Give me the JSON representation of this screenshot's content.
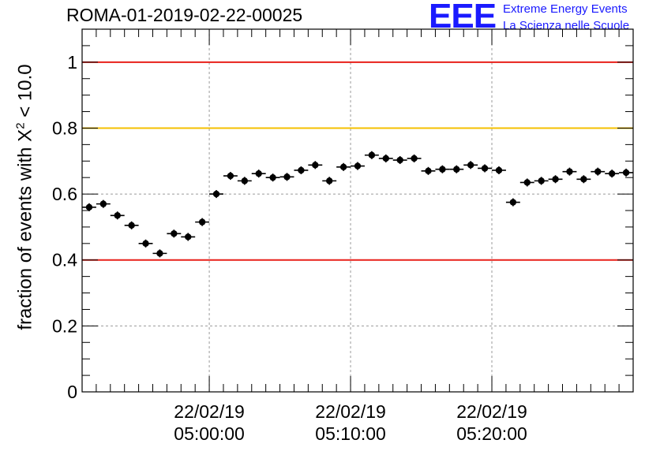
{
  "chart_data": {
    "type": "scatter",
    "title": "ROMA-01-2019-02-22-00025",
    "ylabel": {
      "prefix": "fraction of events with ",
      "symbol": "X",
      "superscript": "2",
      "suffix": " < 10.0"
    },
    "xlabel": "",
    "ylim": [
      0,
      1.1
    ],
    "xlim_minutes": [
      0,
      39
    ],
    "yticks": [
      "0",
      "0.2",
      "0.4",
      "0.6",
      "0.8",
      "1"
    ],
    "xticks": [
      {
        "minute": 9,
        "date": "22/02/19",
        "time": "05:00:00"
      },
      {
        "minute": 19,
        "date": "22/02/19",
        "time": "05:10:00"
      },
      {
        "minute": 29,
        "date": "22/02/19",
        "time": "05:20:00"
      }
    ],
    "reference_lines": [
      {
        "y": 1.0,
        "color": "#e8201a"
      },
      {
        "y": 0.8,
        "color": "#f5c000"
      },
      {
        "y": 0.4,
        "color": "#e8201a"
      }
    ],
    "grid": true,
    "series": [
      {
        "marker": "filled-circle",
        "color": "#000000",
        "points": [
          {
            "x": 0.5,
            "y": 0.56
          },
          {
            "x": 1.5,
            "y": 0.57
          },
          {
            "x": 2.5,
            "y": 0.535
          },
          {
            "x": 3.5,
            "y": 0.505
          },
          {
            "x": 4.5,
            "y": 0.45
          },
          {
            "x": 5.5,
            "y": 0.42
          },
          {
            "x": 6.5,
            "y": 0.48
          },
          {
            "x": 7.5,
            "y": 0.47
          },
          {
            "x": 8.5,
            "y": 0.515
          },
          {
            "x": 9.5,
            "y": 0.6
          },
          {
            "x": 10.5,
            "y": 0.655
          },
          {
            "x": 11.5,
            "y": 0.64
          },
          {
            "x": 12.5,
            "y": 0.662
          },
          {
            "x": 13.5,
            "y": 0.65
          },
          {
            "x": 14.5,
            "y": 0.652
          },
          {
            "x": 15.5,
            "y": 0.672
          },
          {
            "x": 16.5,
            "y": 0.688
          },
          {
            "x": 17.5,
            "y": 0.64
          },
          {
            "x": 18.5,
            "y": 0.682
          },
          {
            "x": 19.5,
            "y": 0.685
          },
          {
            "x": 20.5,
            "y": 0.718
          },
          {
            "x": 21.5,
            "y": 0.708
          },
          {
            "x": 22.5,
            "y": 0.703
          },
          {
            "x": 23.5,
            "y": 0.708
          },
          {
            "x": 24.5,
            "y": 0.67
          },
          {
            "x": 25.5,
            "y": 0.675
          },
          {
            "x": 26.5,
            "y": 0.675
          },
          {
            "x": 27.5,
            "y": 0.688
          },
          {
            "x": 28.5,
            "y": 0.678
          },
          {
            "x": 29.5,
            "y": 0.672
          },
          {
            "x": 30.5,
            "y": 0.575
          },
          {
            "x": 31.5,
            "y": 0.635
          },
          {
            "x": 32.5,
            "y": 0.64
          },
          {
            "x": 33.5,
            "y": 0.645
          },
          {
            "x": 34.5,
            "y": 0.668
          },
          {
            "x": 35.5,
            "y": 0.645
          },
          {
            "x": 36.5,
            "y": 0.668
          },
          {
            "x": 37.5,
            "y": 0.662
          },
          {
            "x": 38.5,
            "y": 0.665
          }
        ],
        "y_error": 0.012,
        "x_error": 0.5
      }
    ]
  },
  "logo": {
    "mark": "EEE",
    "line1": "Extreme Energy Events",
    "line2": "La Scienza nelle Scuole",
    "color": "#1a1aff"
  }
}
